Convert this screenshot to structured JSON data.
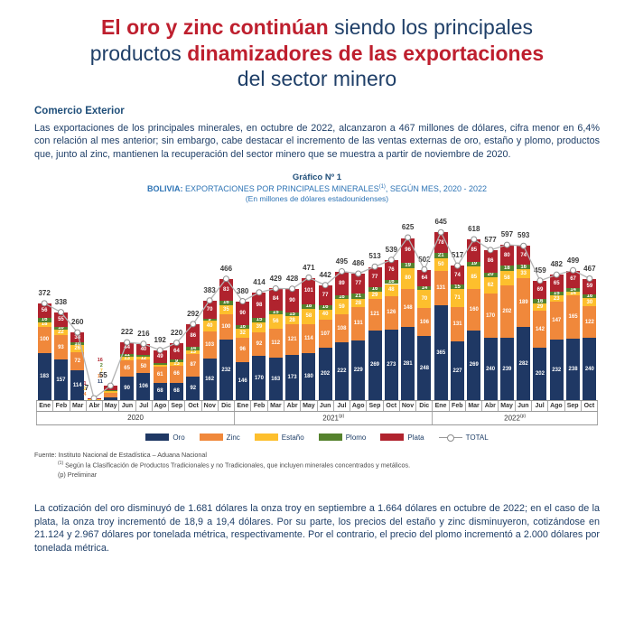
{
  "colors": {
    "red": "#BE1F2E",
    "blue": "#1F3F68",
    "heading_blue": "#1F4E79",
    "chart_blue": "#2E74B5",
    "axis_line": "#999999",
    "total_line": "#b3b3b3",
    "total_marker_stroke": "#8c8c8c"
  },
  "title": {
    "lines": [
      [
        {
          "text": "El oro y zinc continúan",
          "style": "red"
        },
        {
          "text": " siendo los principales",
          "style": "blue"
        }
      ],
      [
        {
          "text": "productos ",
          "style": "blue"
        },
        {
          "text": "dinamizadores de las exportaciones",
          "style": "red"
        }
      ],
      [
        {
          "text": "del sector minero",
          "style": "blue"
        }
      ]
    ]
  },
  "intro": {
    "heading": "Comercio Exterior",
    "text": "Las exportaciones de los principales minerales, en octubre de 2022, alcanzaron a 467 millones de dólares, cifra menor en 6,4% con relación al mes anterior; sin embargo, cabe destacar el incremento de las ventas externas de oro, estaño y plomo, productos que, junto al zinc, mantienen la recuperación del sector minero que se muestra a partir de noviembre de 2020."
  },
  "chart_meta": {
    "number": "Gráfico Nº 1",
    "title_bold": "BOLIVIA:",
    "title_main": " EXPORTACIONES POR PRINCIPALES MINERALES",
    "title_sup": "(1)",
    "title_rest": ", SEGÚN MES, 2020 - 2022",
    "unit_line": "(En millones de dólares estadounidenses)"
  },
  "chart_data": {
    "type": "bar",
    "variant": "stacked-bars-with-total-line",
    "title": "BOLIVIA: EXPORTACIONES POR PRINCIPALES MINERALES(1), SEGÚN MES, 2020 - 2022",
    "subtitle": "(En millones de dólares estadounidenses)",
    "ylim": [
      0,
      660
    ],
    "grid": false,
    "legend_position": "bottom",
    "categories": [
      "Ene",
      "Feb",
      "Mar",
      "Abr",
      "May",
      "Jun",
      "Jul",
      "Ago",
      "Sep",
      "Oct",
      "Nov",
      "Dic",
      "Ene",
      "Feb",
      "Mar",
      "Abr",
      "May",
      "Jun",
      "Jul",
      "Ago",
      "Sep",
      "Oct",
      "Nov",
      "Dic",
      "Ene",
      "Feb",
      "Mar",
      "Abr",
      "May",
      "Jun",
      "Jul",
      "Ago",
      "Sep",
      "Oct"
    ],
    "year_groups": [
      {
        "label": "2020",
        "sup": "",
        "count": 12
      },
      {
        "label": "2021",
        "sup": "(p)",
        "count": 12
      },
      {
        "label": "2022",
        "sup": "(p)",
        "count": 10
      }
    ],
    "series": [
      {
        "name": "Oro",
        "color": "#1F3864",
        "values": [
          183,
          157,
          114,
          0,
          11,
          90,
          106,
          68,
          68,
          92,
          162,
          232,
          146,
          170,
          163,
          173,
          180,
          202,
          222,
          229,
          269,
          273,
          281,
          248,
          365,
          227,
          269,
          240,
          239,
          282,
          202,
          232,
          238,
          240
        ]
      },
      {
        "name": "Zinc",
        "color": "#F0883B",
        "values": [
          100,
          93,
          72,
          4,
          19,
          65,
          50,
          61,
          66,
          87,
          103,
          100,
          96,
          92,
          112,
          121,
          114,
          107,
          108,
          131,
          121,
          126,
          148,
          106,
          131,
          131,
          160,
          170,
          202,
          189,
          142,
          147,
          165,
          122
        ]
      },
      {
        "name": "Estaño",
        "color": "#FDBF2D",
        "values": [
          18,
          22,
          26,
          2,
          7,
          13,
          12,
          7,
          13,
          13,
          40,
          35,
          32,
          39,
          56,
          28,
          58,
          40,
          59,
          28,
          29,
          48,
          80,
          70,
          50,
          71,
          85,
          62,
          58,
          33,
          29,
          23,
          14,
          30
        ]
      },
      {
        "name": "Plomo",
        "color": "#55822D",
        "values": [
          16,
          10,
          10,
          0,
          2,
          11,
          8,
          6,
          9,
          14,
          9,
          16,
          16,
          15,
          15,
          15,
          18,
          16,
          16,
          21,
          16,
          16,
          19,
          14,
          21,
          15,
          19,
          20,
          18,
          16,
          16,
          15,
          14,
          16
        ]
      },
      {
        "name": "Plata",
        "color": "#B0232E",
        "values": [
          56,
          55,
          38,
          1,
          16,
          44,
          40,
          49,
          64,
          86,
          70,
          83,
          90,
          98,
          84,
          90,
          101,
          77,
          89,
          77,
          77,
          76,
          96,
          64,
          78,
          74,
          85,
          86,
          80,
          74,
          69,
          65,
          67,
          59
        ]
      }
    ],
    "totals": [
      372,
      338,
      260,
      7,
      55,
      222,
      216,
      192,
      220,
      292,
      383,
      466,
      380,
      414,
      429,
      428,
      471,
      442,
      495,
      486,
      513,
      539,
      625,
      502,
      645,
      517,
      618,
      577,
      597,
      593,
      459,
      482,
      499,
      467
    ],
    "total_label": "TOTAL"
  },
  "source": {
    "line1": "Fuente: Instituto Nacional de Estadística – Aduana Nacional",
    "line2_sup": "(1)",
    "line2_text": " Según la Clasificación de Productos Tradicionales y no Tradicionales, que incluyen minerales concentrados y metálicos.",
    "line3": "(p) Preliminar"
  },
  "closing": {
    "text": "La cotización del oro disminuyó de 1.681 dólares la onza troy en septiembre a 1.664 dólares en octubre de 2022; en el caso de la plata, la onza troy incrementó de 18,9 a 19,4 dólares. Por su parte, los precios del estaño y zinc disminuyeron, cotizándose en 21.124 y 2.967 dólares por tonelada métrica, respectivamente. Por el contrario, el precio del plomo incrementó a 2.000 dólares por tonelada métrica."
  }
}
